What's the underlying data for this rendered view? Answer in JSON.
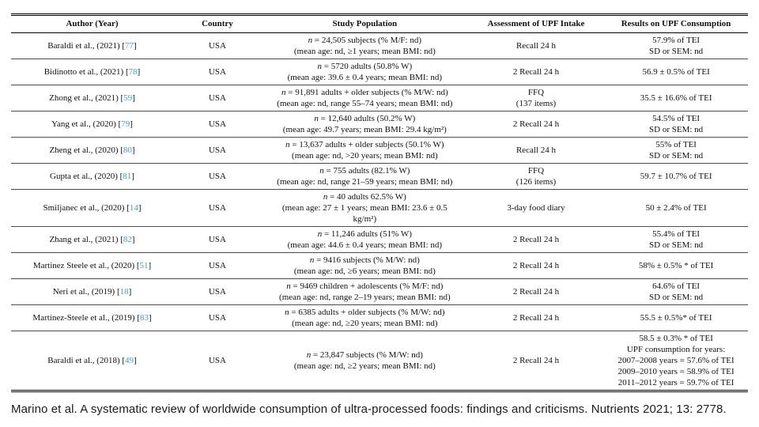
{
  "colors": {
    "citation": "#3f9ec6"
  },
  "table": {
    "columns": [
      "Author (Year)",
      "Country",
      "Study Population",
      "Assessment of UPF Intake",
      "Results on UPF Consumption"
    ],
    "rows": [
      {
        "author": "Baraldi et al., (2021) [77]",
        "country": "USA",
        "population": [
          "n = 24,505 subjects (% M/F: nd)",
          "(mean age: nd, ≥1 years; mean BMI: nd)"
        ],
        "assessment": [
          "Recall 24 h"
        ],
        "results": [
          "57.9% of TEI",
          "SD or SEM: nd"
        ]
      },
      {
        "author": "Bidinotto et al., (2021) [78]",
        "country": "USA",
        "population": [
          "n = 5720 adults (50.8% W)",
          "(mean age: 39.6 ± 0.4 years; mean BMI: nd)"
        ],
        "assessment": [
          "2 Recall 24 h"
        ],
        "results": [
          "56.9 ± 0.5% of TEI"
        ]
      },
      {
        "author": "Zhong et al., (2021) [59]",
        "country": "USA",
        "population": [
          "n = 91,891 adults + older subjects (% M/W: nd)",
          "(mean age: nd, range 55–74 years; mean BMI: nd)"
        ],
        "assessment": [
          "FFQ",
          "(137 items)"
        ],
        "results": [
          "35.5 ± 16.6% of TEI"
        ]
      },
      {
        "author": "Yang et al., (2020) [79]",
        "country": "USA",
        "population": [
          "n = 12,640 adults (50.2% W)",
          "(mean age: 49.7 years; mean BMI: 29.4 kg/m²)"
        ],
        "assessment": [
          "2 Recall 24 h"
        ],
        "results": [
          "54.5% of TEI",
          "SD or SEM: nd"
        ]
      },
      {
        "author": "Zheng et al., (2020) [80]",
        "country": "USA",
        "population": [
          "n = 13,637 adults + older subjects (50.1% W)",
          "(mean age: nd, >20 years; mean BMI: nd)"
        ],
        "assessment": [
          "Recall 24 h"
        ],
        "results": [
          "55% of TEI",
          "SD or SEM: nd"
        ]
      },
      {
        "author": "Gupta et al., (2020) [81]",
        "country": "USA",
        "population": [
          "n = 755 adults (82.1% W)",
          "(mean age: nd, range 21–59 years; mean BMI: nd)"
        ],
        "assessment": [
          "FFQ",
          "(126 items)"
        ],
        "results": [
          "59.7 ± 10.7% of TEI"
        ]
      },
      {
        "author": "Smiljanec et al., (2020) [14]",
        "country": "USA",
        "population": [
          "n = 40 adults 62.5% W)",
          "(mean age: 27 ± 1 years; mean BMI: 23.6 ± 0.5",
          "kg/m²)"
        ],
        "assessment": [
          "3-day food diary"
        ],
        "results": [
          "50 ± 2.4% of TEI"
        ]
      },
      {
        "author": "Zhang et al., (2021) [82]",
        "country": "USA",
        "population": [
          "n = 11,246 adults (51% W)",
          "(mean age: 44.6 ± 0.4 years; mean BMI: nd)"
        ],
        "assessment": [
          "2 Recall 24 h"
        ],
        "results": [
          "55.4% of TEI",
          "SD or SEM: nd"
        ]
      },
      {
        "author": "Martinez Steele et al., (2020) [51]",
        "country": "USA",
        "population": [
          "n = 9416 subjects (% M/W: nd)",
          "(mean age: nd, ≥6 years; mean BMI: nd)"
        ],
        "assessment": [
          "2 Recall 24 h"
        ],
        "results": [
          "58% ± 0.5% * of TEI"
        ]
      },
      {
        "author": "Neri et al., (2019) [18]",
        "country": "USA",
        "population": [
          "n = 9469 children + adolescents (% M/F: nd)",
          "(mean age: nd, range 2–19 years; mean BMI: nd)"
        ],
        "assessment": [
          "2 Recall 24 h"
        ],
        "results": [
          "64.6% of TEI",
          "SD or SEM: nd"
        ]
      },
      {
        "author": "Martínez-Steele et al., (2019) [83]",
        "country": "USA",
        "population": [
          "n = 6385 adults + older subjects (% M/W: nd)",
          "(mean age: nd, ≥20 years; mean BMI: nd)"
        ],
        "assessment": [
          "2 Recall 24 h"
        ],
        "results": [
          "55.5 ± 0.5%* of TEI"
        ]
      },
      {
        "author": "Baraldi et al., (2018) [49]",
        "country": "USA",
        "population": [
          "n = 23,847 subjects (% M/W: nd)",
          "(mean age: nd, ≥2 years; mean BMI: nd)"
        ],
        "assessment": [
          "2 Recall 24 h"
        ],
        "results": [
          "58.5 ± 0.3% * of TEI",
          "UPF consumption for years:",
          "2007–2008 years = 57.6% of TEI",
          "2009–2010 years = 58.9% of TEI",
          "2011–2012 years = 59.7% of TEI"
        ]
      }
    ]
  },
  "caption": "Marino et al. A systematic review of worldwide consumption of ultra-processed foods: findings and criticisms. Nutrients 2021; 13: 2778."
}
